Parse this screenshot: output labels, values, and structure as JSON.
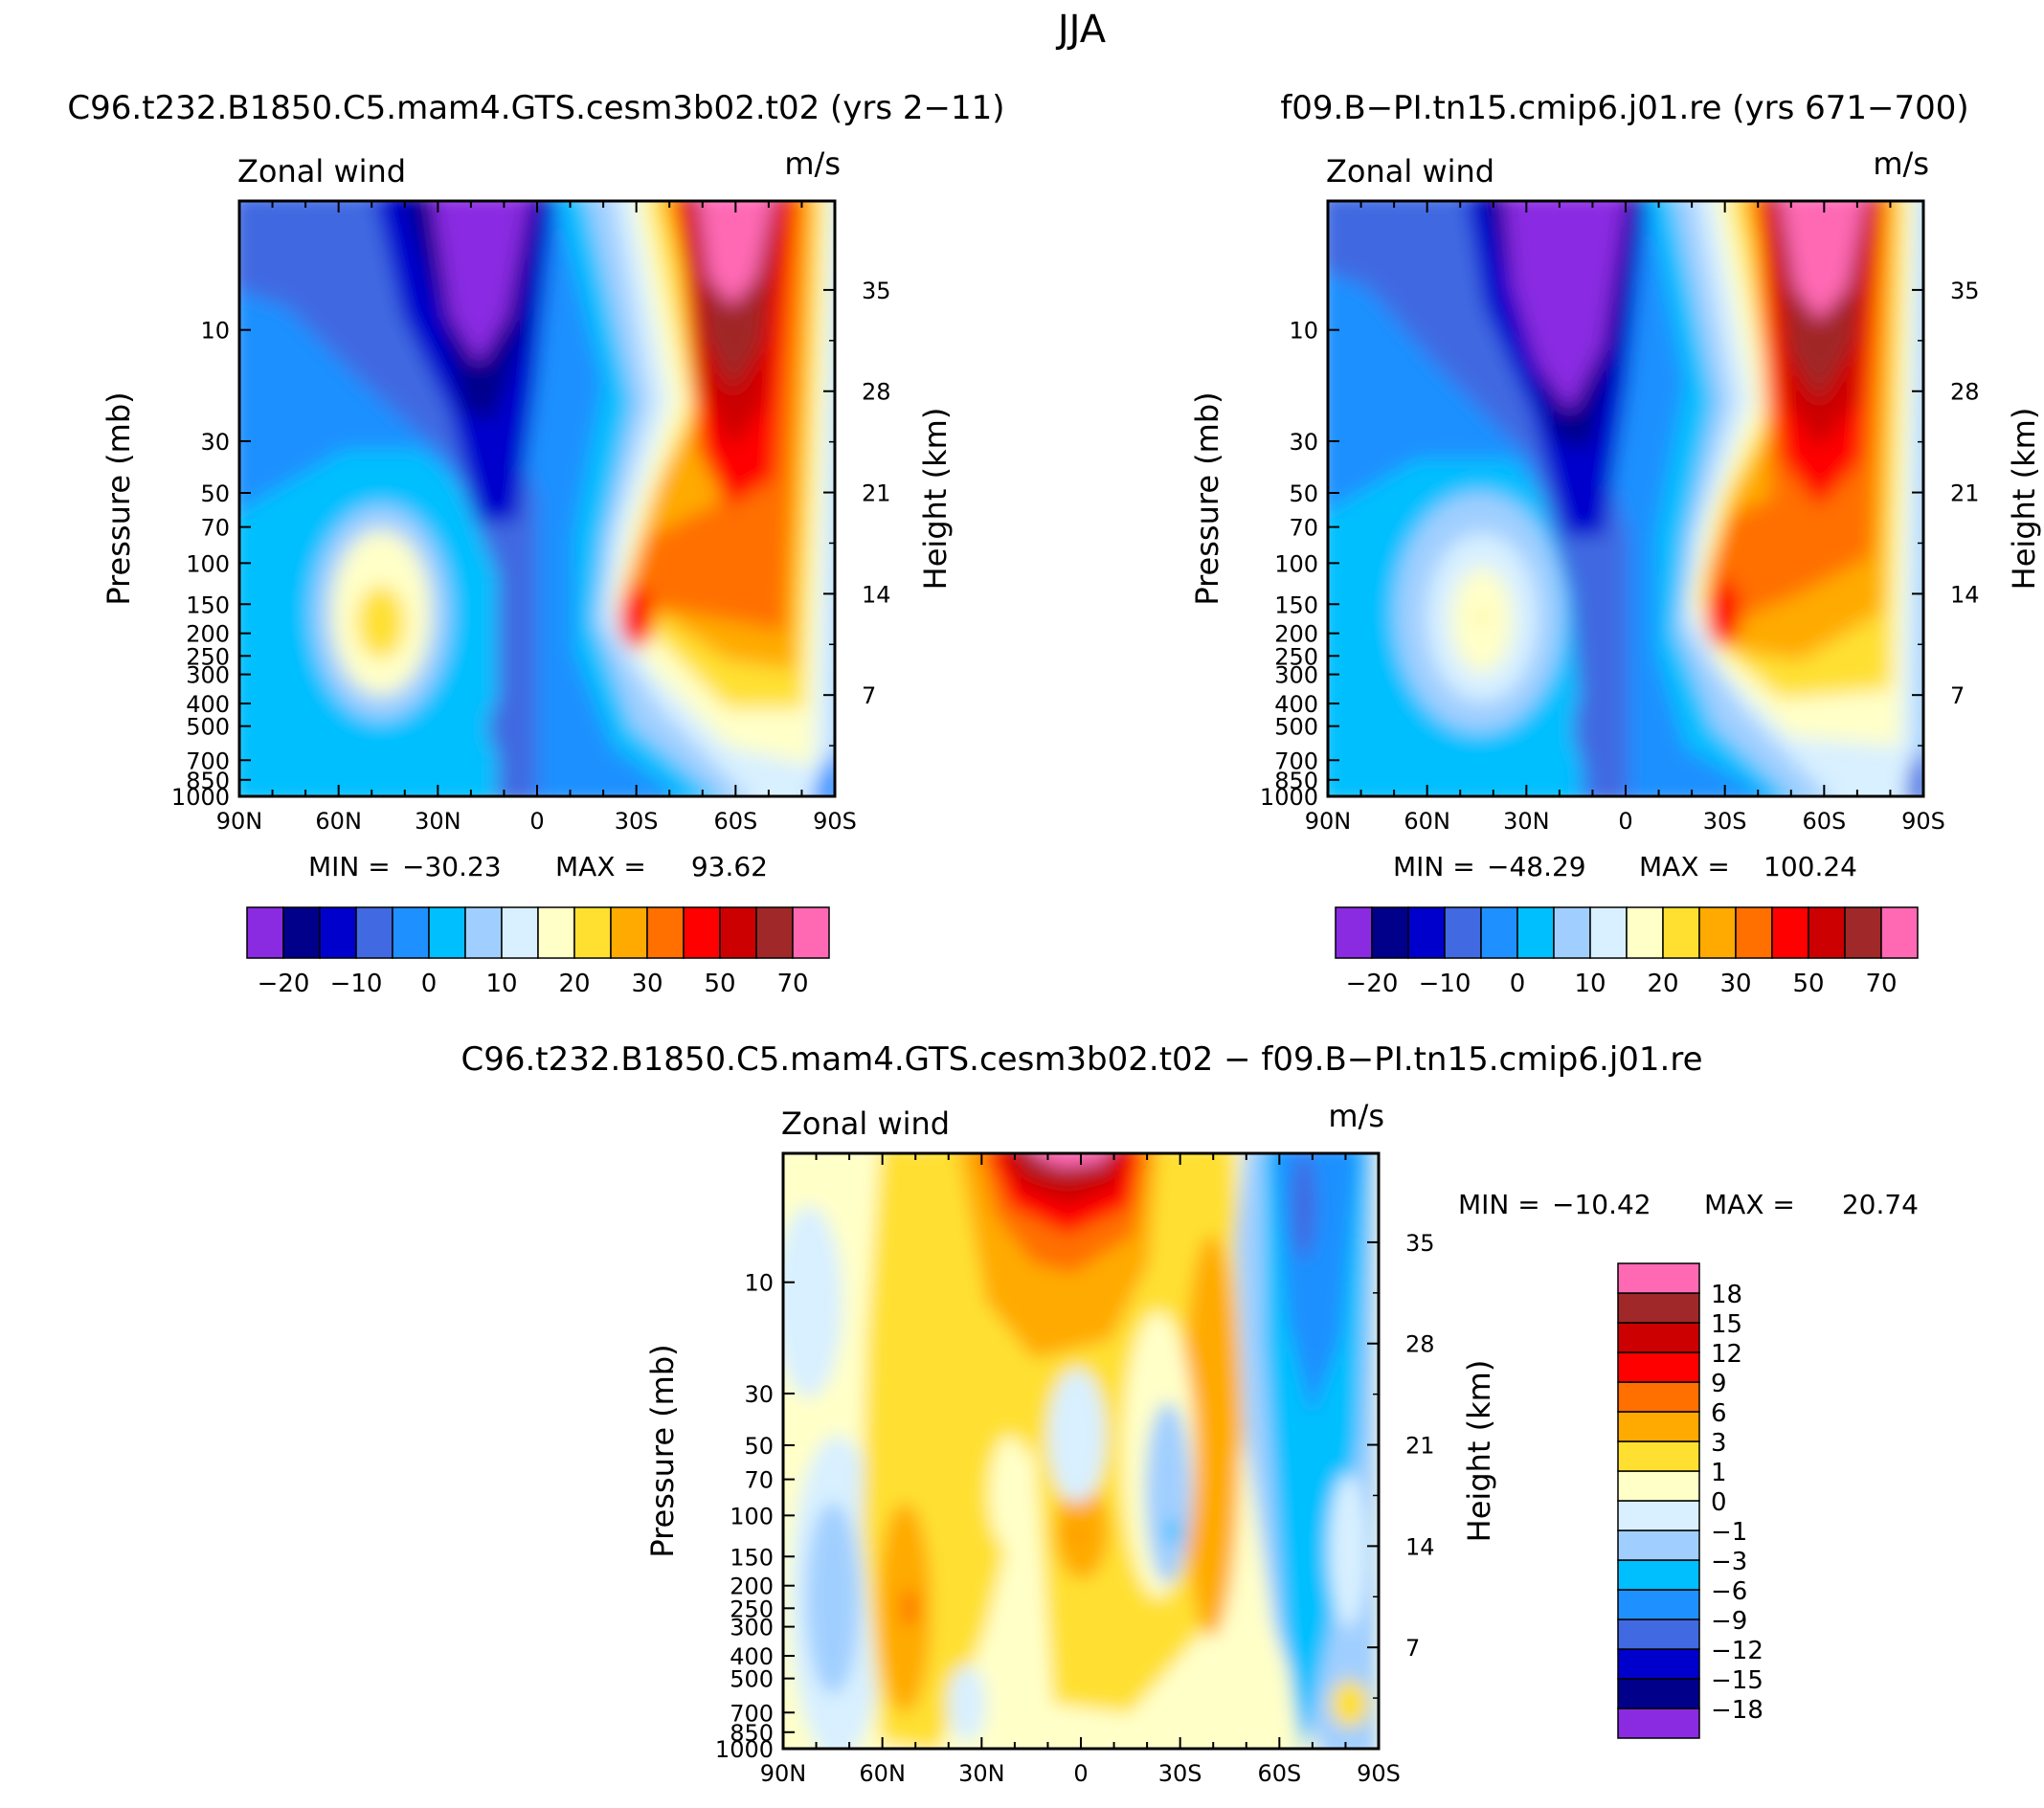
{
  "main_title": "JJA",
  "stat_labels": {
    "min": "MIN =",
    "max": "MAX ="
  },
  "panels": [
    {
      "title": "C96.t232.B1850.C5.mam4.GTS.cesm3b02.t02 (yrs 2−11)",
      "field_label": "Zonal wind",
      "units": "m/s",
      "min": "−30.23",
      "max": "93.62"
    },
    {
      "title": "f09.B−PI.tn15.cmip6.j01.re (yrs 671−700)",
      "field_label": "Zonal wind",
      "units": "m/s",
      "min": "−48.29",
      "max": "100.24"
    },
    {
      "title": "C96.t232.B1850.C5.mam4.GTS.cesm3b02.t02 − f09.B−PI.tn15.cmip6.j01.re",
      "field_label": "Zonal wind",
      "units": "m/s",
      "min": "−10.42",
      "max": "20.74"
    }
  ],
  "axes": {
    "ylabel_left": "Pressure (mb)",
    "ylabel_right": "Height (km)",
    "x_ticks": [
      "90N",
      "60N",
      "30N",
      "0",
      "30S",
      "60S",
      "90S"
    ],
    "pressure_ticks": [
      "10",
      "30",
      "50",
      "70",
      "100",
      "150",
      "200",
      "250",
      "300",
      "400",
      "500",
      "700",
      "850",
      "1000"
    ],
    "height_ticks": [
      "35",
      "28",
      "21",
      "14",
      "7"
    ]
  },
  "colorbars": {
    "full": {
      "colors": [
        "#8a2be2",
        "#00008b",
        "#0000cd",
        "#4169e1",
        "#1e90ff",
        "#00bfff",
        "#a0cfff",
        "#d8f0ff",
        "#ffffc8",
        "#ffe030",
        "#ffaa00",
        "#ff7000",
        "#ff0000",
        "#cc0000",
        "#a02828",
        "#ff69b4"
      ],
      "labels": [
        "−20",
        "−10",
        "0",
        "10",
        "20",
        "30",
        "50",
        "70"
      ]
    },
    "diff": {
      "colors": [
        "#8a2be2",
        "#00008b",
        "#0000cd",
        "#4169e1",
        "#1e90ff",
        "#00bfff",
        "#a0cfff",
        "#d8f0ff",
        "#ffffc8",
        "#ffe030",
        "#ffaa00",
        "#ff7000",
        "#ff0000",
        "#cc0000",
        "#a02828",
        "#ff69b4"
      ],
      "labels": [
        "−18",
        "−15",
        "−12",
        "−9",
        "−6",
        "−3",
        "−1",
        "0",
        "1",
        "3",
        "6",
        "9",
        "12",
        "15",
        "18"
      ]
    }
  },
  "chart_data": [
    {
      "type": "heatmap",
      "title": "C96.t232.B1850.C5.mam4.GTS.cesm3b02.t02 (yrs 2−11)",
      "xlabel": "",
      "ylabel": "Pressure (mb)",
      "ylabel_right": "Height (km)",
      "x_categories": [
        "90N",
        "60N",
        "30N",
        "0",
        "30S",
        "60S",
        "90S"
      ],
      "xlim": [
        90,
        -90
      ],
      "ylim_pressure_mb": [
        1000,
        3
      ],
      "y_scale": "log",
      "levels": [
        -20,
        -10,
        0,
        10,
        20,
        30,
        50,
        70
      ],
      "min": -30.23,
      "max": 93.62,
      "features": [
        {
          "name": "easterly stratospheric jet",
          "lat": 15,
          "pressure_mb": 7,
          "value": -30
        },
        {
          "name": "westerly polar night jet",
          "lat": -60,
          "pressure_mb": 5,
          "value": 93.62
        },
        {
          "name": "northern subtropical jet",
          "lat": 45,
          "pressure_mb": 200,
          "value": 22
        },
        {
          "name": "southern subtropical jet",
          "lat": -30,
          "pressure_mb": 200,
          "value": 55
        }
      ]
    },
    {
      "type": "heatmap",
      "title": "f09.B−PI.tn15.cmip6.j01.re (yrs 671−700)",
      "xlabel": "",
      "ylabel": "Pressure (mb)",
      "ylabel_right": "Height (km)",
      "x_categories": [
        "90N",
        "60N",
        "30N",
        "0",
        "30S",
        "60S",
        "90S"
      ],
      "xlim": [
        90,
        -90
      ],
      "ylim_pressure_mb": [
        1000,
        3
      ],
      "y_scale": "log",
      "levels": [
        -20,
        -10,
        0,
        10,
        20,
        30,
        50,
        70
      ],
      "min": -48.29,
      "max": 100.24,
      "features": [
        {
          "name": "easterly stratospheric jet",
          "lat": 15,
          "pressure_mb": 10,
          "value": -48.29
        },
        {
          "name": "westerly polar night jet",
          "lat": -60,
          "pressure_mb": 5,
          "value": 100.24
        },
        {
          "name": "northern subtropical jet",
          "lat": 45,
          "pressure_mb": 200,
          "value": 18
        },
        {
          "name": "southern subtropical jet",
          "lat": -30,
          "pressure_mb": 200,
          "value": 52
        }
      ]
    },
    {
      "type": "heatmap",
      "title": "C96.t232.B1850.C5.mam4.GTS.cesm3b02.t02 − f09.B−PI.tn15.cmip6.j01.re",
      "xlabel": "",
      "ylabel": "Pressure (mb)",
      "ylabel_right": "Height (km)",
      "x_categories": [
        "90N",
        "60N",
        "30N",
        "0",
        "30S",
        "60S",
        "90S"
      ],
      "xlim": [
        90,
        -90
      ],
      "ylim_pressure_mb": [
        1000,
        3
      ],
      "y_scale": "log",
      "levels": [
        -18,
        -15,
        -12,
        -9,
        -6,
        -3,
        -1,
        0,
        1,
        3,
        6,
        9,
        12,
        15,
        18
      ],
      "min": -10.42,
      "max": 20.74,
      "features": [
        {
          "name": "upper stratosphere positive maximum",
          "lat": 0,
          "pressure_mb": 3,
          "value": 20.74
        },
        {
          "name": "southern high-latitude negative band",
          "lat": -67,
          "pressure_mb": 10,
          "value": -10.42
        }
      ]
    }
  ]
}
